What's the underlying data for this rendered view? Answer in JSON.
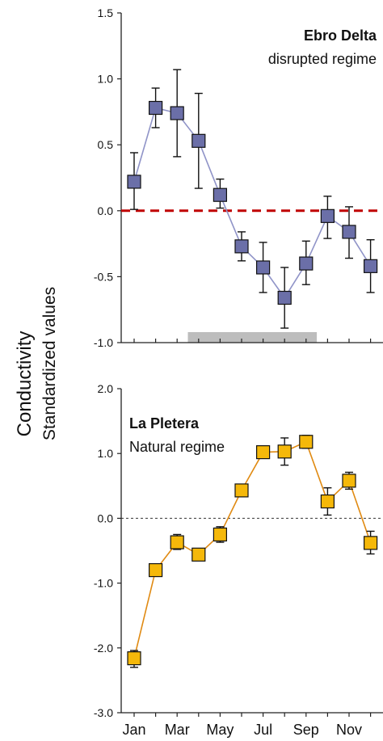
{
  "y_axis": {
    "title": "Conductivity",
    "subtitle": "Standardized values"
  },
  "chart_data": [
    {
      "type": "line",
      "title": "Ebro Delta",
      "subtitle": "disrupted regime",
      "ylim": [
        -1.0,
        1.5
      ],
      "yticks": [
        "1.5",
        "1.0",
        "0.5",
        "0.0",
        "-0.5",
        "-1.0"
      ],
      "ytick_values": [
        1.5,
        1.0,
        0.5,
        0.0,
        -0.5,
        -1.0
      ],
      "x": [
        1,
        2,
        3,
        4,
        5,
        6,
        7,
        8,
        9,
        10,
        11,
        12
      ],
      "series": [
        {
          "values": [
            0.22,
            0.78,
            0.74,
            0.53,
            0.12,
            -0.27,
            -0.43,
            -0.66,
            -0.4,
            -0.04,
            -0.16,
            -0.42
          ],
          "err_low": [
            0.01,
            0.63,
            0.41,
            0.17,
            0.02,
            -0.38,
            -0.62,
            -0.89,
            -0.56,
            -0.21,
            -0.36,
            -0.62
          ],
          "err_high": [
            0.44,
            0.93,
            1.07,
            0.89,
            0.24,
            -0.16,
            -0.24,
            -0.43,
            -0.23,
            0.11,
            0.03,
            -0.22
          ],
          "color": "#6b6fa8",
          "line_color": "#9094c8"
        }
      ],
      "reference_line": {
        "y": 0.0,
        "color": "#c00000",
        "style": "dashed"
      },
      "highlight_bar": {
        "x_from": 3.5,
        "x_to": 9.5,
        "color": "#bdbdbd"
      }
    },
    {
      "type": "line",
      "title": "La Pletera",
      "subtitle": "Natural regime",
      "ylim": [
        -3.0,
        2.0
      ],
      "yticks": [
        "2.0",
        "1.0",
        "0.0",
        "-1.0",
        "-2.0",
        "-3.0"
      ],
      "ytick_values": [
        2.0,
        1.0,
        0.0,
        -1.0,
        -2.0,
        -3.0
      ],
      "x": [
        1,
        2,
        3,
        4,
        5,
        6,
        7,
        8,
        9,
        10,
        11,
        12
      ],
      "categories": [
        "Jan",
        "Mar",
        "May",
        "Jul",
        "Sep",
        "Nov"
      ],
      "category_positions": [
        1,
        3,
        5,
        7,
        9,
        11
      ],
      "series": [
        {
          "values": [
            -2.16,
            -0.8,
            -0.37,
            -0.56,
            -0.25,
            0.43,
            1.02,
            1.03,
            1.18,
            0.26,
            0.58,
            -0.38
          ],
          "err_low": [
            -2.3,
            -0.8,
            -0.48,
            -0.56,
            -0.37,
            0.43,
            1.02,
            0.82,
            1.08,
            0.05,
            0.45,
            -0.55
          ],
          "err_high": [
            -2.04,
            -0.8,
            -0.25,
            -0.56,
            -0.13,
            0.43,
            1.02,
            1.24,
            1.28,
            0.47,
            0.71,
            -0.2
          ],
          "color": "#f5b80a",
          "line_color": "#e08a12"
        }
      ],
      "reference_line": {
        "y": 0.0,
        "color": "#333333",
        "style": "dotted"
      }
    }
  ]
}
